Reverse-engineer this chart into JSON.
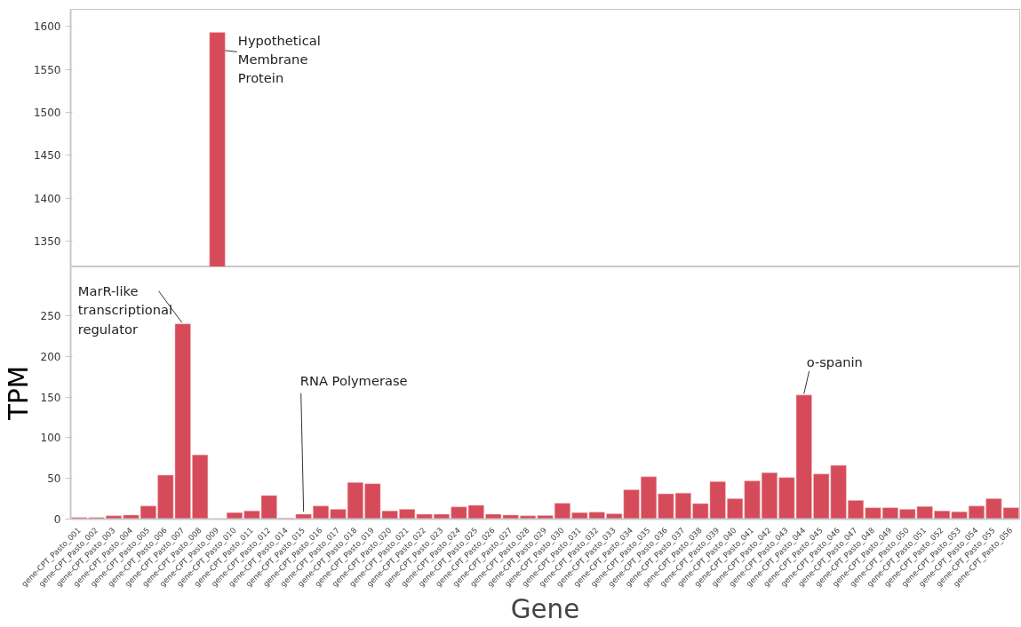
{
  "chart_data": [
    {
      "type": "bar",
      "categories": [
        "gene-CPT_Pasto_001",
        "gene-CPT_Pasto_002",
        "gene-CPT_Pasto_003",
        "gene-CPT_Pasto_004",
        "gene-CPT_Pasto_005",
        "gene-CPT_Pasto_006",
        "gene-CPT_Pasto_007",
        "gene-CPT_Pasto_008",
        "gene-CPT_Pasto_009",
        "gene-CPT_Pasto_010",
        "gene-CPT_Pasto_011",
        "gene-CPT_Pasto_012",
        "gene-CPT_Pasto_014",
        "gene-CPT_Pasto_015",
        "gene-CPT_Pasto_016",
        "gene-CPT_Pasto_017",
        "gene-CPT_Pasto_018",
        "gene-CPT_Pasto_019",
        "gene-CPT_Pasto_020",
        "gene-CPT_Pasto_021",
        "gene-CPT_Pasto_022",
        "gene-CPT_Pasto_023",
        "gene-CPT_Pasto_024",
        "gene-CPT_Pasto_025",
        "gene-CPT_Pasto_026",
        "gene-CPT_Pasto_027",
        "gene-CPT_Pasto_028",
        "gene-CPT_Pasto_029",
        "gene-CPT_Pasto_030",
        "gene-CPT_Pasto_031",
        "gene-CPT_Pasto_032",
        "gene-CPT_Pasto_033",
        "gene-CPT_Pasto_034",
        "gene-CPT_Pasto_035",
        "gene-CPT_Pasto_036",
        "gene-CPT_Pasto_037",
        "gene-CPT_Pasto_038",
        "gene-CPT_Pasto_039",
        "gene-CPT_Pasto_040",
        "gene-CPT_Pasto_041",
        "gene-CPT_Pasto_042",
        "gene-CPT_Pasto_043",
        "gene-CPT_Pasto_044",
        "gene-CPT_Pasto_045",
        "gene-CPT_Pasto_046",
        "gene-CPT_Pasto_047",
        "gene-CPT_Pasto_048",
        "gene-CPT_Pasto_049",
        "gene-CPT_Pasto_050",
        "gene-CPT_Pasto_051",
        "gene-CPT_Pasto_052",
        "gene-CPT_Pasto_053",
        "gene-CPT_Pasto_054",
        "gene-CPT_Pasto_055",
        "gene-CPT_Pasto_056"
      ],
      "values": [
        null,
        null,
        null,
        null,
        null,
        null,
        null,
        null,
        1593,
        null,
        null,
        null,
        null,
        null,
        null,
        null,
        null,
        null,
        null,
        null,
        null,
        null,
        null,
        null,
        null,
        null,
        null,
        null,
        null,
        null,
        null,
        null,
        null,
        null,
        null,
        null,
        null,
        null,
        null,
        null,
        null,
        null,
        null,
        null,
        null,
        null,
        null,
        null,
        null,
        null,
        null,
        null,
        null,
        null,
        null
      ],
      "color": "#d64b5a",
      "ylim": [
        1320,
        1620
      ],
      "yticks": [
        1350,
        1400,
        1450,
        1500,
        1550,
        1600
      ],
      "tick_labels": "y",
      "grid": false,
      "annotations": [
        {
          "text": "Hypothetical\nMembrane\nProtein",
          "x": "gene-CPT_Pasto_009",
          "y": 1593
        }
      ]
    },
    {
      "type": "bar",
      "categories": [
        "gene-CPT_Pasto_001",
        "gene-CPT_Pasto_002",
        "gene-CPT_Pasto_003",
        "gene-CPT_Pasto_004",
        "gene-CPT_Pasto_005",
        "gene-CPT_Pasto_006",
        "gene-CPT_Pasto_007",
        "gene-CPT_Pasto_008",
        "gene-CPT_Pasto_009",
        "gene-CPT_Pasto_010",
        "gene-CPT_Pasto_011",
        "gene-CPT_Pasto_012",
        "gene-CPT_Pasto_014",
        "gene-CPT_Pasto_015",
        "gene-CPT_Pasto_016",
        "gene-CPT_Pasto_017",
        "gene-CPT_Pasto_018",
        "gene-CPT_Pasto_019",
        "gene-CPT_Pasto_020",
        "gene-CPT_Pasto_021",
        "gene-CPT_Pasto_022",
        "gene-CPT_Pasto_023",
        "gene-CPT_Pasto_024",
        "gene-CPT_Pasto_025",
        "gene-CPT_Pasto_026",
        "gene-CPT_Pasto_027",
        "gene-CPT_Pasto_028",
        "gene-CPT_Pasto_029",
        "gene-CPT_Pasto_030",
        "gene-CPT_Pasto_031",
        "gene-CPT_Pasto_032",
        "gene-CPT_Pasto_033",
        "gene-CPT_Pasto_034",
        "gene-CPT_Pasto_035",
        "gene-CPT_Pasto_036",
        "gene-CPT_Pasto_037",
        "gene-CPT_Pasto_038",
        "gene-CPT_Pasto_039",
        "gene-CPT_Pasto_040",
        "gene-CPT_Pasto_041",
        "gene-CPT_Pasto_042",
        "gene-CPT_Pasto_043",
        "gene-CPT_Pasto_044",
        "gene-CPT_Pasto_045",
        "gene-CPT_Pasto_046",
        "gene-CPT_Pasto_047",
        "gene-CPT_Pasto_048",
        "gene-CPT_Pasto_049",
        "gene-CPT_Pasto_050",
        "gene-CPT_Pasto_051",
        "gene-CPT_Pasto_052",
        "gene-CPT_Pasto_053",
        "gene-CPT_Pasto_054",
        "gene-CPT_Pasto_055",
        "gene-CPT_Pasto_056"
      ],
      "values": [
        2,
        2,
        4,
        5,
        16,
        54,
        240,
        79,
        null,
        8,
        10,
        29,
        1,
        6,
        16,
        12,
        45,
        43.5,
        10,
        12,
        6,
        6,
        15,
        17,
        6,
        5,
        4,
        4.5,
        19.5,
        8,
        8.5,
        6.5,
        36,
        52,
        31,
        32,
        19,
        46,
        25,
        47,
        57,
        51,
        152.5,
        55.5,
        66,
        23,
        14,
        14,
        12,
        15.5,
        10,
        9,
        16,
        25,
        14
      ],
      "color": "#d64b5a",
      "ylim": [
        0,
        310
      ],
      "yticks": [
        0,
        50,
        100,
        150,
        200,
        250
      ],
      "grid": false,
      "xlabel": "Gene",
      "ylabel": "TPM",
      "annotations": [
        {
          "text": "MarR-like\ntranscriptional\nregulator",
          "x": "gene-CPT_Pasto_007",
          "y": 240
        },
        {
          "text": "RNA Polymerase",
          "x": "gene-CPT_Pasto_015",
          "y": 6
        },
        {
          "text": "o-spanin",
          "x": "gene-CPT_Pasto_044",
          "y": 152.5
        }
      ]
    }
  ]
}
